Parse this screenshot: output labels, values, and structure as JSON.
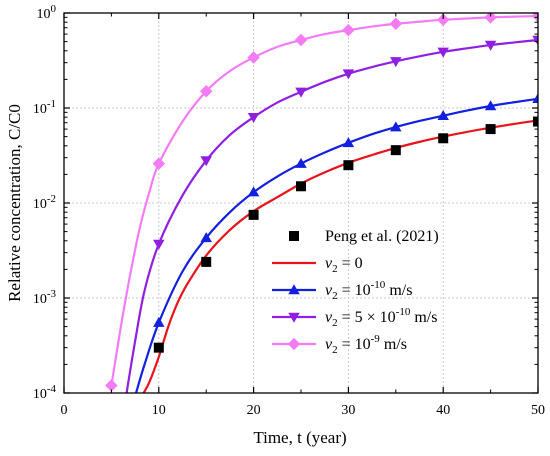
{
  "chart_data": {
    "type": "line",
    "xlabel": "Time, t (year)",
    "ylabel": "Relative concentration, C/C0",
    "xlim": [
      0,
      50
    ],
    "ylim": [
      0.0001,
      1
    ],
    "yscale": "log",
    "grid": true,
    "legend_position": "lower-right",
    "x_ticks": [
      "0",
      "10",
      "20",
      "30",
      "40",
      "50"
    ],
    "y_ticks": [
      {
        "base": "10",
        "exp": "-4",
        "value": 0.0001
      },
      {
        "base": "10",
        "exp": "-3",
        "value": 0.001
      },
      {
        "base": "10",
        "exp": "-2",
        "value": 0.01
      },
      {
        "base": "10",
        "exp": "-1",
        "value": 0.1
      },
      {
        "base": "10",
        "exp": "0",
        "value": 1
      }
    ],
    "legend": [
      "Peng et al. (2021)",
      "v2 = 0",
      "v2 = 10^-10 m/s",
      "v2 = 5 × 10^-10 m/s",
      "v2 = 10^-9 m/s"
    ],
    "series": [
      {
        "name": "Peng et al. (2021)",
        "kind": "scatter",
        "marker": "square",
        "color": "#000000",
        "x": [
          10,
          15,
          20,
          25,
          30,
          35,
          40,
          45,
          50
        ],
        "y": [
          0.0003,
          0.0024,
          0.0075,
          0.015,
          0.025,
          0.036,
          0.048,
          0.06,
          0.072
        ]
      },
      {
        "name": "v2 = 0",
        "kind": "line",
        "marker": "none",
        "color": "#e8141c",
        "x": [
          8.4,
          9,
          10,
          11,
          12,
          13,
          15,
          17.5,
          20,
          22.5,
          25,
          27.5,
          30,
          32.5,
          35,
          37.5,
          40,
          42.5,
          45,
          47.5,
          50
        ],
        "y": [
          0.0001,
          0.00013,
          0.00024,
          0.0005,
          0.0009,
          0.0014,
          0.0028,
          0.0052,
          0.0082,
          0.0115,
          0.016,
          0.021,
          0.0265,
          0.032,
          0.038,
          0.044,
          0.05,
          0.056,
          0.062,
          0.068,
          0.074
        ]
      },
      {
        "name": "v2 = 10^-10 m/s",
        "kind": "line",
        "marker": "triangle-up",
        "color": "#1420e0",
        "x": [
          7.6,
          8.5,
          10,
          12.5,
          15,
          17.5,
          20,
          22.5,
          25,
          27.5,
          30,
          32.5,
          35,
          37.5,
          40,
          42.5,
          45,
          47.5,
          50
        ],
        "y": [
          0.0001,
          0.0002,
          0.00055,
          0.0019,
          0.0043,
          0.008,
          0.013,
          0.019,
          0.026,
          0.034,
          0.043,
          0.053,
          0.063,
          0.073,
          0.083,
          0.094,
          0.105,
          0.115,
          0.125
        ],
        "marker_x": [
          10,
          15,
          20,
          25,
          30,
          35,
          40,
          45,
          50
        ]
      },
      {
        "name": "v2 = 5 × 10^-10 m/s",
        "kind": "line",
        "marker": "triangle-down",
        "color": "#9020e0",
        "x": [
          6.6,
          7.5,
          8.5,
          10,
          12.5,
          15,
          17.5,
          20,
          22.5,
          25,
          27.5,
          30,
          32.5,
          35,
          37.5,
          40,
          42.5,
          45,
          47.5,
          50
        ],
        "y": [
          0.0001,
          0.00035,
          0.0012,
          0.0037,
          0.012,
          0.028,
          0.052,
          0.08,
          0.114,
          0.148,
          0.188,
          0.23,
          0.27,
          0.31,
          0.35,
          0.39,
          0.425,
          0.46,
          0.49,
          0.52
        ],
        "marker_x": [
          10,
          15,
          20,
          25,
          30,
          35,
          40,
          45,
          50
        ]
      },
      {
        "name": "v2 = 10^-9 m/s",
        "kind": "line",
        "marker": "diamond",
        "color": "#f37cf5",
        "x": [
          5,
          6,
          7,
          8,
          9,
          10,
          12.5,
          15,
          17.5,
          20,
          22.5,
          25,
          27.5,
          30,
          32.5,
          35,
          37.5,
          40,
          42.5,
          45,
          47.5,
          50
        ],
        "y": [
          0.00012,
          0.0005,
          0.0018,
          0.0055,
          0.013,
          0.026,
          0.072,
          0.15,
          0.245,
          0.34,
          0.44,
          0.52,
          0.6,
          0.66,
          0.72,
          0.77,
          0.81,
          0.85,
          0.875,
          0.9,
          0.915,
          0.93
        ],
        "marker_x": [
          5,
          10,
          15,
          20,
          25,
          30,
          35,
          40,
          45,
          50
        ]
      }
    ]
  }
}
